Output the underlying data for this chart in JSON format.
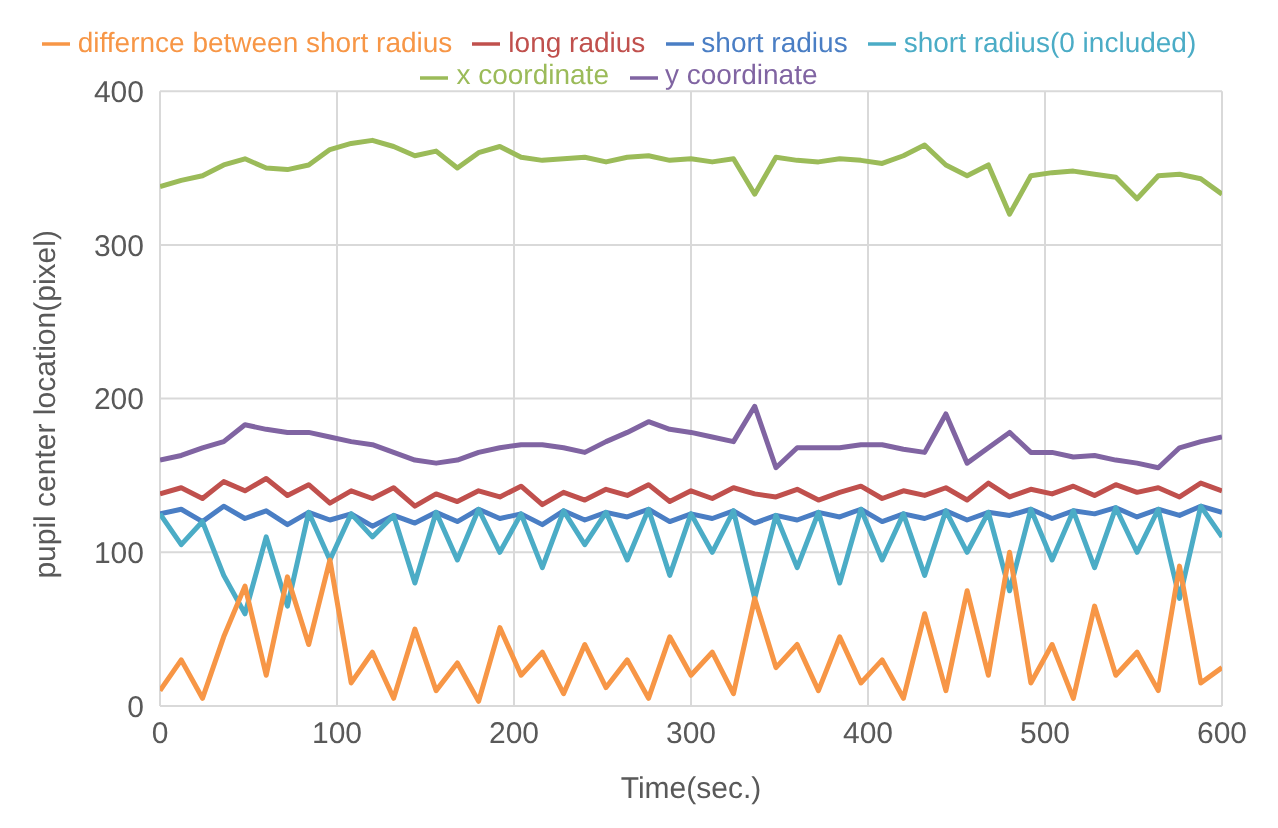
{
  "chart_data": {
    "type": "line",
    "xlabel": "Time(sec.)",
    "ylabel": "pupil center location(pixel)",
    "x": [
      0,
      12,
      24,
      36,
      48,
      60,
      72,
      84,
      96,
      108,
      120,
      132,
      144,
      156,
      168,
      180,
      192,
      204,
      216,
      228,
      240,
      252,
      264,
      276,
      288,
      300,
      312,
      324,
      336,
      348,
      360,
      372,
      384,
      396,
      408,
      420,
      432,
      444,
      456,
      468,
      480,
      492,
      504,
      516,
      528,
      540,
      552,
      564,
      576,
      588,
      600
    ],
    "xlim": [
      0,
      600
    ],
    "xticks": [
      0,
      100,
      200,
      300,
      400,
      500,
      600
    ],
    "ylim": [
      0,
      400
    ],
    "yticks": [
      0,
      100,
      200,
      300,
      400
    ],
    "grid": true,
    "legend": "top",
    "marker": "none",
    "line_style": "solid",
    "series": [
      {
        "name": "short radius",
        "color": "#4a7ec4",
        "values": [
          125,
          128,
          120,
          130,
          122,
          127,
          118,
          126,
          121,
          125,
          117,
          124,
          119,
          126,
          120,
          128,
          122,
          125,
          118,
          127,
          121,
          126,
          123,
          128,
          120,
          125,
          122,
          127,
          119,
          124,
          121,
          126,
          123,
          128,
          120,
          125,
          122,
          127,
          121,
          126,
          124,
          128,
          122,
          127,
          125,
          129,
          123,
          128,
          124,
          130,
          126
        ]
      },
      {
        "name": "long radius",
        "color": "#c0504d",
        "values": [
          138,
          142,
          135,
          146,
          140,
          148,
          137,
          144,
          132,
          140,
          135,
          142,
          130,
          138,
          133,
          140,
          136,
          143,
          131,
          139,
          134,
          141,
          137,
          144,
          133,
          140,
          135,
          142,
          138,
          136,
          141,
          134,
          139,
          143,
          135,
          140,
          137,
          142,
          134,
          145,
          136,
          141,
          138,
          143,
          137,
          144,
          139,
          142,
          136,
          145,
          140
        ]
      },
      {
        "name": "x coordinate",
        "color": "#9bbb59",
        "values": [
          338,
          342,
          345,
          352,
          356,
          350,
          349,
          352,
          362,
          366,
          368,
          364,
          358,
          361,
          350,
          360,
          364,
          357,
          355,
          356,
          357,
          354,
          357,
          358,
          355,
          356,
          354,
          356,
          333,
          357,
          355,
          354,
          356,
          355,
          353,
          358,
          365,
          352,
          345,
          352,
          320,
          345,
          347,
          348,
          346,
          344,
          330,
          345,
          346,
          343,
          333
        ]
      },
      {
        "name": "y coordinate",
        "color": "#8064a2",
        "values": [
          160,
          163,
          168,
          172,
          183,
          180,
          178,
          178,
          175,
          172,
          170,
          165,
          160,
          158,
          160,
          165,
          168,
          170,
          170,
          168,
          165,
          172,
          178,
          185,
          180,
          178,
          175,
          172,
          195,
          155,
          168,
          168,
          168,
          170,
          170,
          167,
          165,
          190,
          158,
          168,
          178,
          165,
          165,
          162,
          163,
          160,
          158,
          155,
          168,
          172,
          175
        ]
      },
      {
        "name": "short radius(0 included)",
        "color": "#4bacc6",
        "values": [
          125,
          105,
          120,
          85,
          60,
          110,
          65,
          126,
          95,
          125,
          110,
          124,
          80,
          126,
          95,
          128,
          100,
          125,
          90,
          127,
          105,
          126,
          95,
          128,
          85,
          125,
          100,
          127,
          70,
          124,
          90,
          126,
          80,
          128,
          95,
          125,
          85,
          127,
          100,
          126,
          75,
          128,
          95,
          127,
          90,
          129,
          100,
          128,
          70,
          130,
          110
        ]
      },
      {
        "name": "differnce between short radius",
        "color": "#f79646",
        "values": [
          10,
          30,
          5,
          45,
          78,
          20,
          84,
          40,
          95,
          15,
          35,
          5,
          50,
          10,
          28,
          3,
          51,
          20,
          35,
          8,
          40,
          12,
          30,
          5,
          45,
          20,
          35,
          8,
          70,
          25,
          40,
          10,
          45,
          15,
          30,
          5,
          60,
          10,
          75,
          20,
          100,
          15,
          40,
          5,
          65,
          20,
          35,
          10,
          91,
          15,
          25
        ]
      }
    ]
  }
}
